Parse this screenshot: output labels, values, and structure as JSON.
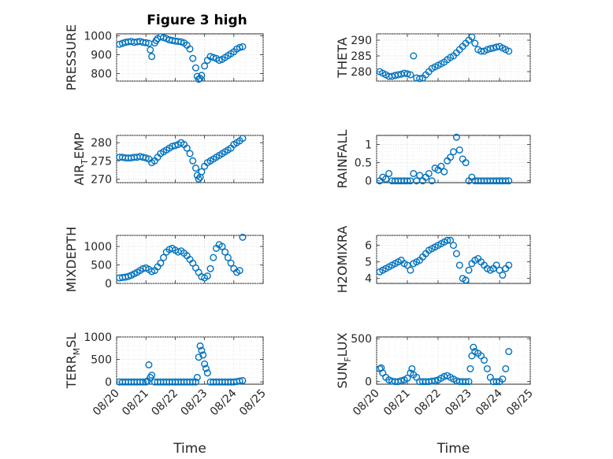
{
  "figure_title": "Figure 3 high",
  "chart_data": [
    {
      "type": "scatter",
      "ylabel": "PRESSURE",
      "xlabel": "",
      "ylim": [
        760,
        1010
      ],
      "yticks": [
        800,
        900,
        1000
      ],
      "xlim": [
        0,
        5
      ],
      "xticks": [
        0,
        1,
        2,
        3,
        4,
        5
      ],
      "xticklabels": [
        "08/20",
        "08/21",
        "08/22",
        "08/23",
        "08/24",
        "08/25"
      ],
      "grid": true,
      "marker": "circle",
      "color": "#0072BD",
      "x": [
        0.1,
        0.2,
        0.3,
        0.4,
        0.5,
        0.6,
        0.7,
        0.8,
        0.9,
        1.0,
        1.1,
        1.15,
        1.2,
        1.3,
        1.35,
        1.4,
        1.5,
        1.6,
        1.7,
        1.8,
        1.9,
        2.0,
        2.1,
        2.2,
        2.3,
        2.4,
        2.5,
        2.6,
        2.7,
        2.75,
        2.8,
        2.85,
        2.9,
        3.0,
        3.1,
        3.2,
        3.3,
        3.4,
        3.5,
        3.6,
        3.7,
        3.8,
        3.9,
        4.0,
        4.1,
        4.2,
        4.3
      ],
      "y": [
        955,
        960,
        965,
        968,
        970,
        965,
        968,
        970,
        965,
        963,
        960,
        925,
        890,
        962,
        975,
        985,
        995,
        990,
        985,
        978,
        975,
        972,
        970,
        968,
        962,
        950,
        930,
        880,
        830,
        785,
        770,
        775,
        790,
        840,
        870,
        890,
        885,
        880,
        870,
        875,
        885,
        895,
        905,
        915,
        930,
        938,
        942
      ]
    },
    {
      "type": "scatter",
      "ylabel": "THETA",
      "xlabel": "",
      "ylim": [
        277,
        292
      ],
      "yticks": [
        280,
        285,
        290
      ],
      "xlim": [
        0,
        5
      ],
      "xticks": [
        0,
        1,
        2,
        3,
        4,
        5
      ],
      "xticklabels": [
        "08/20",
        "08/21",
        "08/22",
        "08/23",
        "08/24",
        "08/25"
      ],
      "grid": true,
      "marker": "circle",
      "color": "#0072BD",
      "x": [
        0.1,
        0.2,
        0.3,
        0.4,
        0.5,
        0.6,
        0.7,
        0.8,
        0.9,
        1.0,
        1.1,
        1.2,
        1.3,
        1.4,
        1.5,
        1.6,
        1.7,
        1.8,
        1.9,
        2.0,
        2.1,
        2.2,
        2.3,
        2.4,
        2.5,
        2.6,
        2.7,
        2.8,
        2.9,
        3.0,
        3.1,
        3.2,
        3.3,
        3.4,
        3.5,
        3.6,
        3.7,
        3.8,
        3.9,
        4.0,
        4.1,
        4.2,
        4.3
      ],
      "y": [
        280,
        279.5,
        279,
        278.5,
        278.5,
        278.8,
        279,
        279.2,
        279.5,
        279.3,
        279,
        285,
        278,
        277.8,
        278,
        279,
        280,
        281,
        281.5,
        282,
        282.5,
        283,
        283.8,
        284.5,
        285,
        286,
        287,
        288,
        289,
        290,
        291,
        289,
        287,
        286.5,
        286.5,
        287,
        287.3,
        287.5,
        287.8,
        288,
        287.5,
        287,
        286.5
      ]
    },
    {
      "type": "scatter",
      "ylabel": "AIR_TEMP",
      "xlabel": "",
      "ylim": [
        269,
        282
      ],
      "yticks": [
        270,
        275,
        280
      ],
      "xlim": [
        0,
        5
      ],
      "xticks": [
        0,
        1,
        2,
        3,
        4,
        5
      ],
      "xticklabels": [
        "08/20",
        "08/21",
        "08/22",
        "08/23",
        "08/24",
        "08/25"
      ],
      "grid": true,
      "marker": "circle",
      "color": "#0072BD",
      "x": [
        0.1,
        0.2,
        0.3,
        0.4,
        0.5,
        0.6,
        0.7,
        0.8,
        0.9,
        1.0,
        1.1,
        1.2,
        1.3,
        1.4,
        1.5,
        1.6,
        1.7,
        1.8,
        1.9,
        2.0,
        2.1,
        2.2,
        2.3,
        2.4,
        2.5,
        2.6,
        2.7,
        2.75,
        2.8,
        2.85,
        2.9,
        3.0,
        3.1,
        3.2,
        3.3,
        3.4,
        3.5,
        3.6,
        3.7,
        3.8,
        3.9,
        4.0,
        4.1,
        4.2,
        4.3
      ],
      "y": [
        276,
        276,
        275.8,
        275.8,
        275.8,
        276,
        276,
        276.2,
        276,
        275.8,
        275.5,
        274.5,
        275,
        276,
        277,
        277.5,
        278,
        278.5,
        279,
        279.2,
        279.5,
        280,
        279.5,
        278.5,
        277,
        275,
        273,
        271,
        270,
        270.5,
        272,
        273.5,
        274.5,
        275,
        275.5,
        276,
        276.5,
        277,
        277.5,
        278,
        278.5,
        279.5,
        280,
        280.5,
        281.2
      ]
    },
    {
      "type": "scatter",
      "ylabel": "RAINFALL",
      "xlabel": "",
      "ylim": [
        -0.05,
        1.25
      ],
      "yticks": [
        0,
        0.5,
        1
      ],
      "xlim": [
        0,
        5
      ],
      "xticks": [
        0,
        1,
        2,
        3,
        4,
        5
      ],
      "xticklabels": [
        "08/20",
        "08/21",
        "08/22",
        "08/23",
        "08/24",
        "08/25"
      ],
      "grid": true,
      "marker": "circle",
      "color": "#0072BD",
      "x": [
        0.1,
        0.2,
        0.3,
        0.4,
        0.5,
        0.6,
        0.7,
        0.8,
        0.9,
        1.0,
        1.1,
        1.2,
        1.3,
        1.4,
        1.5,
        1.6,
        1.7,
        1.8,
        1.9,
        2.0,
        2.1,
        2.2,
        2.3,
        2.4,
        2.5,
        2.6,
        2.7,
        2.8,
        2.9,
        3.0,
        3.1,
        3.2,
        3.3,
        3.4,
        3.5,
        3.6,
        3.7,
        3.8,
        3.9,
        4.0,
        4.1,
        4.2,
        4.3
      ],
      "y": [
        0,
        0.1,
        0.05,
        0.2,
        0,
        0,
        0,
        0,
        0,
        0,
        0,
        0.2,
        0,
        0.15,
        0,
        0.1,
        0.2,
        0,
        0.35,
        0.3,
        0.4,
        0.25,
        0.55,
        0.65,
        0.8,
        1.2,
        0.85,
        0.6,
        0.5,
        0,
        0.1,
        0,
        0,
        0,
        0,
        0,
        0,
        0,
        0,
        0,
        0,
        0,
        0
      ]
    },
    {
      "type": "scatter",
      "ylabel": "MIXDEPTH",
      "xlabel": "",
      "ylim": [
        0,
        1300
      ],
      "yticks": [
        0,
        500,
        1000
      ],
      "xlim": [
        0,
        5
      ],
      "xticks": [
        0,
        1,
        2,
        3,
        4,
        5
      ],
      "xticklabels": [
        "08/20",
        "08/21",
        "08/22",
        "08/23",
        "08/24",
        "08/25"
      ],
      "grid": true,
      "marker": "circle",
      "color": "#0072BD",
      "x": [
        0.1,
        0.2,
        0.3,
        0.4,
        0.5,
        0.6,
        0.7,
        0.8,
        0.9,
        1.0,
        1.1,
        1.2,
        1.3,
        1.4,
        1.5,
        1.6,
        1.7,
        1.8,
        1.9,
        2.0,
        2.1,
        2.2,
        2.3,
        2.4,
        2.5,
        2.6,
        2.7,
        2.8,
        2.9,
        3.0,
        3.1,
        3.2,
        3.3,
        3.4,
        3.5,
        3.6,
        3.7,
        3.8,
        3.9,
        4.0,
        4.1,
        4.2,
        4.3
      ],
      "y": [
        150,
        160,
        170,
        190,
        220,
        260,
        300,
        350,
        400,
        420,
        380,
        320,
        350,
        450,
        550,
        700,
        850,
        920,
        950,
        900,
        850,
        880,
        820,
        750,
        650,
        550,
        420,
        300,
        180,
        150,
        200,
        400,
        700,
        950,
        1050,
        1000,
        850,
        700,
        550,
        400,
        300,
        350,
        1250
      ]
    },
    {
      "type": "scatter",
      "ylabel": "H2OMIXRA",
      "xlabel": "",
      "ylim": [
        3.7,
        6.6
      ],
      "yticks": [
        4,
        5,
        6
      ],
      "xlim": [
        0,
        5
      ],
      "xticks": [
        0,
        1,
        2,
        3,
        4,
        5
      ],
      "xticklabels": [
        "08/20",
        "08/21",
        "08/22",
        "08/23",
        "08/24",
        "08/25"
      ],
      "grid": true,
      "marker": "circle",
      "color": "#0072BD",
      "x": [
        0.1,
        0.2,
        0.3,
        0.4,
        0.5,
        0.6,
        0.7,
        0.8,
        0.9,
        1.0,
        1.1,
        1.2,
        1.3,
        1.4,
        1.5,
        1.6,
        1.7,
        1.8,
        1.9,
        2.0,
        2.1,
        2.2,
        2.3,
        2.4,
        2.5,
        2.6,
        2.7,
        2.8,
        2.9,
        3.0,
        3.1,
        3.2,
        3.3,
        3.4,
        3.5,
        3.6,
        3.7,
        3.8,
        3.9,
        4.0,
        4.1,
        4.2,
        4.3
      ],
      "y": [
        4.4,
        4.5,
        4.6,
        4.7,
        4.8,
        4.9,
        5.0,
        5.1,
        4.9,
        4.8,
        4.5,
        4.9,
        5.0,
        5.1,
        5.3,
        5.5,
        5.7,
        5.8,
        5.9,
        6.0,
        6.1,
        6.2,
        6.3,
        6.3,
        6.0,
        5.5,
        4.8,
        4.0,
        3.9,
        4.5,
        4.9,
        5.1,
        5.2,
        5.0,
        4.8,
        4.6,
        4.5,
        4.6,
        4.8,
        4.5,
        4.2,
        4.6,
        4.8
      ]
    },
    {
      "type": "scatter",
      "ylabel": "TERR_MSL",
      "xlabel": "Time",
      "ylim": [
        -50,
        1000
      ],
      "yticks": [
        0,
        500,
        1000
      ],
      "xlim": [
        0,
        5
      ],
      "xticks": [
        0,
        1,
        2,
        3,
        4,
        5
      ],
      "xticklabels": [
        "08/20",
        "08/21",
        "08/22",
        "08/23",
        "08/24",
        "08/25"
      ],
      "grid": true,
      "marker": "circle",
      "color": "#0072BD",
      "x": [
        0.1,
        0.2,
        0.3,
        0.4,
        0.5,
        0.6,
        0.7,
        0.8,
        0.9,
        1.0,
        1.05,
        1.1,
        1.15,
        1.2,
        1.3,
        1.4,
        1.5,
        1.6,
        1.7,
        1.8,
        1.9,
        2.0,
        2.1,
        2.2,
        2.3,
        2.4,
        2.5,
        2.6,
        2.7,
        2.75,
        2.8,
        2.85,
        2.9,
        2.95,
        3.0,
        3.05,
        3.1,
        3.2,
        3.3,
        3.4,
        3.5,
        3.6,
        3.7,
        3.8,
        3.9,
        4.0,
        4.1,
        4.2,
        4.3
      ],
      "y": [
        0,
        0,
        0,
        0,
        0,
        0,
        0,
        0,
        0,
        0,
        20,
        380,
        100,
        150,
        0,
        0,
        0,
        0,
        0,
        0,
        0,
        0,
        0,
        0,
        0,
        0,
        0,
        0,
        0,
        100,
        550,
        800,
        700,
        600,
        400,
        300,
        200,
        0,
        0,
        0,
        0,
        0,
        0,
        0,
        0,
        0,
        10,
        20,
        30
      ]
    },
    {
      "type": "scatter",
      "ylabel": "SUN_FLUX",
      "xlabel": "Time",
      "ylim": [
        -30,
        520
      ],
      "yticks": [
        0,
        500
      ],
      "xlim": [
        0,
        5
      ],
      "xticks": [
        0,
        1,
        2,
        3,
        4,
        5
      ],
      "xticklabels": [
        "08/20",
        "08/21",
        "08/22",
        "08/23",
        "08/24",
        "08/25"
      ],
      "grid": true,
      "marker": "circle",
      "color": "#0072BD",
      "x": [
        0.1,
        0.15,
        0.2,
        0.3,
        0.4,
        0.5,
        0.6,
        0.7,
        0.8,
        0.9,
        1.0,
        1.1,
        1.15,
        1.2,
        1.3,
        1.4,
        1.5,
        1.6,
        1.7,
        1.8,
        1.9,
        2.0,
        2.1,
        2.2,
        2.3,
        2.4,
        2.5,
        2.6,
        2.7,
        2.8,
        2.9,
        3.0,
        3.05,
        3.1,
        3.15,
        3.2,
        3.3,
        3.4,
        3.5,
        3.6,
        3.7,
        3.8,
        3.9,
        4.0,
        4.1,
        4.2,
        4.3
      ],
      "y": [
        150,
        160,
        100,
        50,
        20,
        5,
        0,
        0,
        10,
        20,
        40,
        100,
        150,
        80,
        50,
        0,
        0,
        0,
        0,
        5,
        10,
        20,
        40,
        60,
        70,
        50,
        30,
        10,
        0,
        0,
        0,
        0,
        150,
        300,
        400,
        350,
        330,
        300,
        250,
        150,
        50,
        0,
        0,
        0,
        30,
        150,
        350
      ]
    }
  ]
}
